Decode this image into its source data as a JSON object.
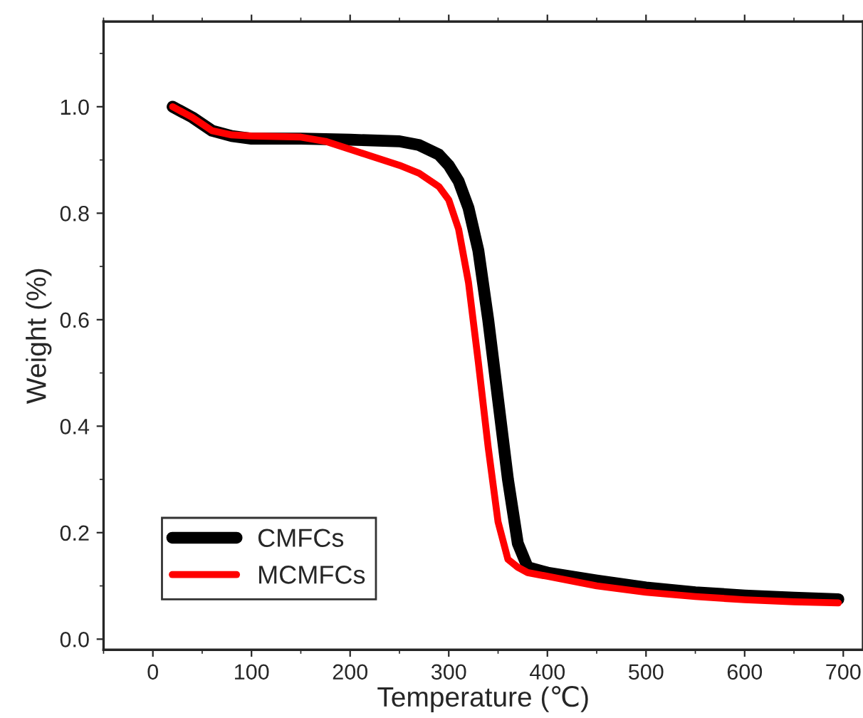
{
  "chart_data": {
    "type": "line",
    "xlabel": "Temperature (℃)",
    "ylabel": "Weight (%)",
    "xlim": [
      -50,
      720
    ],
    "ylim": [
      -0.02,
      1.16
    ],
    "xticks": [
      0,
      100,
      200,
      300,
      400,
      500,
      600,
      700
    ],
    "yticks": [
      {
        "value": 0,
        "label": "0.0"
      },
      {
        "value": 0.2,
        "label": "0.2"
      },
      {
        "value": 0.4,
        "label": "0.4"
      },
      {
        "value": 0.6,
        "label": "0.6"
      },
      {
        "value": 0.8,
        "label": "0.8"
      },
      {
        "value": 1,
        "label": "1.0"
      }
    ],
    "grid": false,
    "legend": "bottom left",
    "line_style": "solid",
    "series": [
      {
        "name": "CMFCs",
        "color": "#000000",
        "x": [
          20,
          40,
          60,
          80,
          100,
          150,
          200,
          250,
          270,
          290,
          300,
          310,
          320,
          330,
          340,
          350,
          360,
          370,
          380,
          400,
          450,
          500,
          550,
          600,
          650,
          695
        ],
        "values": [
          1.0,
          0.98,
          0.955,
          0.945,
          0.94,
          0.94,
          0.938,
          0.935,
          0.928,
          0.91,
          0.89,
          0.86,
          0.81,
          0.73,
          0.6,
          0.45,
          0.3,
          0.18,
          0.135,
          0.125,
          0.11,
          0.097,
          0.088,
          0.082,
          0.078,
          0.075
        ]
      },
      {
        "name": "MCMFCs",
        "color": "#ff0000",
        "x": [
          20,
          40,
          60,
          80,
          100,
          150,
          175,
          200,
          225,
          250,
          270,
          290,
          300,
          310,
          320,
          330,
          340,
          350,
          360,
          370,
          380,
          400,
          450,
          500,
          550,
          600,
          650,
          695
        ],
        "values": [
          1.0,
          0.98,
          0.955,
          0.947,
          0.945,
          0.943,
          0.935,
          0.92,
          0.905,
          0.89,
          0.875,
          0.85,
          0.825,
          0.77,
          0.67,
          0.52,
          0.36,
          0.22,
          0.15,
          0.135,
          0.125,
          0.118,
          0.1,
          0.088,
          0.08,
          0.074,
          0.07,
          0.068
        ]
      }
    ]
  }
}
